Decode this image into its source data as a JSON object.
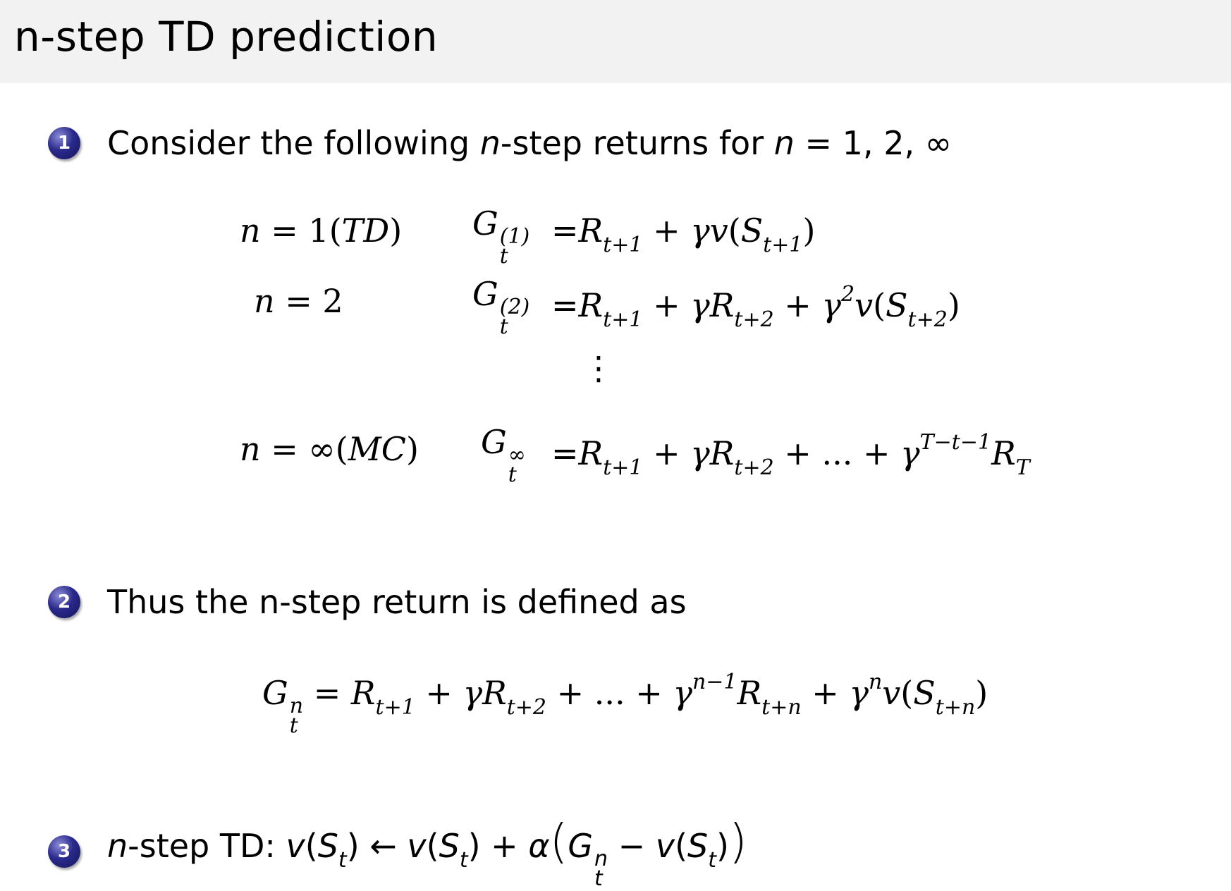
{
  "header": {
    "title": "n-step TD prediction"
  },
  "items": [
    {
      "number": "1",
      "text": [
        {
          "t": "Consider the following "
        },
        {
          "t": "n",
          "i": true
        },
        {
          "t": "-step returns for "
        },
        {
          "t": "n",
          "i": true
        },
        {
          "t": " = 1, 2, ∞"
        }
      ]
    },
    {
      "number": "2",
      "text": [
        {
          "t": "Thus the n-step return is defined as"
        }
      ]
    },
    {
      "number": "3",
      "text": [
        {
          "t": "n",
          "i": true
        },
        {
          "t": "-step TD: "
        },
        {
          "t": "v",
          "i": true
        },
        {
          "t": "("
        },
        {
          "t": "S",
          "i": true,
          "sub": "t"
        },
        {
          "t": ") ← "
        },
        {
          "t": "v",
          "i": true
        },
        {
          "t": "("
        },
        {
          "t": "S",
          "i": true,
          "sub": "t"
        },
        {
          "t": ") + "
        },
        {
          "t": "α",
          "i": true
        },
        {
          "t": "(",
          "big": true
        },
        {
          "t": "G",
          "i": true,
          "sub": "t",
          "sup": "n"
        },
        {
          "t": " − "
        },
        {
          "t": "v",
          "i": true
        },
        {
          "t": "("
        },
        {
          "t": "S",
          "i": true,
          "sub": "t"
        },
        {
          "t": ")"
        },
        {
          "t": ")",
          "big": true
        }
      ]
    }
  ],
  "equations": [
    {
      "label": [
        {
          "t": "n",
          "i": true
        },
        {
          "t": " = 1("
        },
        {
          "t": "TD",
          "i": true
        },
        {
          "t": ")"
        }
      ],
      "lhs": [
        {
          "t": "G",
          "i": true,
          "sub": "t",
          "sup": "(1)"
        }
      ],
      "rhs": [
        {
          "t": "=",
          "m": true
        },
        {
          "t": "R",
          "i": true,
          "sub": "t+1"
        },
        {
          "t": " + "
        },
        {
          "t": "γv",
          "i": true
        },
        {
          "t": "("
        },
        {
          "t": "S",
          "i": true,
          "sub": "t+1"
        },
        {
          "t": ")"
        }
      ]
    },
    {
      "label": [
        {
          "t": "n",
          "i": true
        },
        {
          "t": " = 2"
        }
      ],
      "lhs": [
        {
          "t": "G",
          "i": true,
          "sub": "t",
          "sup": "(2)"
        }
      ],
      "rhs": [
        {
          "t": "=",
          "m": true
        },
        {
          "t": "R",
          "i": true,
          "sub": "t+1"
        },
        {
          "t": " + "
        },
        {
          "t": "γR",
          "i": true,
          "sub": "t+2"
        },
        {
          "t": " + "
        },
        {
          "t": "γ",
          "i": true,
          "sup": "2"
        },
        {
          "t": "v",
          "i": true
        },
        {
          "t": "("
        },
        {
          "t": "S",
          "i": true,
          "sub": "t+2"
        },
        {
          "t": ")"
        }
      ]
    },
    {
      "label": [
        {
          "t": "n",
          "i": true
        },
        {
          "t": " = ∞("
        },
        {
          "t": "MC",
          "i": true
        },
        {
          "t": ")"
        }
      ],
      "lhs": [
        {
          "t": "G",
          "i": true,
          "sub": "t",
          "sup": "∞"
        }
      ],
      "rhs": [
        {
          "t": "=",
          "m": true
        },
        {
          "t": "R",
          "i": true,
          "sub": "t+1"
        },
        {
          "t": " + "
        },
        {
          "t": "γR",
          "i": true,
          "sub": "t+2"
        },
        {
          "t": " + ... + "
        },
        {
          "t": "γ",
          "i": true,
          "sup": "T−t−1"
        },
        {
          "t": "R",
          "i": true,
          "sub": "T"
        }
      ]
    }
  ],
  "vdots": "⋮",
  "definition": [
    {
      "t": "G",
      "i": true,
      "sub": "t",
      "sup": "n"
    },
    {
      "t": " = "
    },
    {
      "t": "R",
      "i": true,
      "sub": "t+1"
    },
    {
      "t": " + "
    },
    {
      "t": "γR",
      "i": true,
      "sub": "t+2"
    },
    {
      "t": " + ... + "
    },
    {
      "t": "γ",
      "i": true,
      "sup": "n−1"
    },
    {
      "t": "R",
      "i": true,
      "sub": "t+n"
    },
    {
      "t": " + "
    },
    {
      "t": "γ",
      "i": true,
      "sup": "n"
    },
    {
      "t": "v",
      "i": true
    },
    {
      "t": "("
    },
    {
      "t": "S",
      "i": true,
      "sub": "t+n"
    },
    {
      "t": ")"
    }
  ],
  "colors": {
    "header_bg": "#f2f2f2",
    "bullet": "#2a2a8c"
  }
}
